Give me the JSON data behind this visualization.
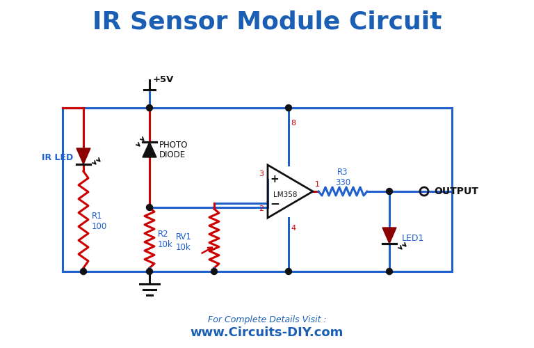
{
  "title": "IR Sensor Module Circuit",
  "title_color": "#1a5fb4",
  "bg_color": "#ffffff",
  "wire_blue": "#2060cc",
  "wire_red": "#cc0000",
  "black": "#111111",
  "darkred": "#8b0000",
  "label_blue": "#2060cc",
  "label_red": "#cc0000",
  "footer1": "For Complete Details Visit :",
  "footer2": "www.Circuits-DIY.com",
  "footer_color": "#1a5fb4",
  "lw": 2.2
}
